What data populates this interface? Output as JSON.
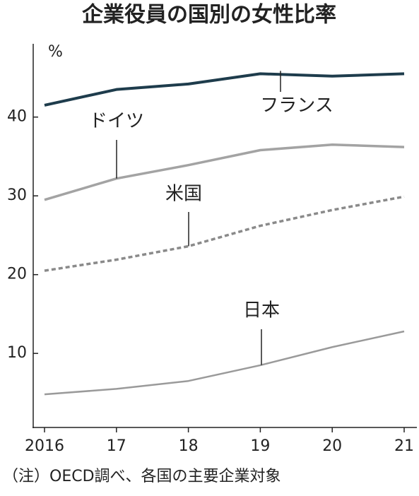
{
  "chart_data": {
    "type": "line",
    "title": "企業役員の国別の女性比率",
    "y_unit": "%",
    "note": "（注）OECD調べ、各国の主要企業対象",
    "categories": [
      "2016",
      "17",
      "18",
      "19",
      "20",
      "21"
    ],
    "series": [
      {
        "name": "フランス",
        "color": "#1e3c4c",
        "style": "solid",
        "values": [
          41.5,
          43.5,
          44.2,
          45.5,
          45.2,
          45.5
        ]
      },
      {
        "name": "ドイツ",
        "color": "#a3a3a3",
        "style": "solid",
        "values": [
          29.5,
          32.2,
          33.9,
          35.8,
          36.5,
          36.2
        ]
      },
      {
        "name": "米国",
        "color": "#8a8a8a",
        "style": "dashed",
        "values": [
          20.5,
          21.9,
          23.6,
          26.2,
          28.2,
          29.9
        ]
      },
      {
        "name": "日本",
        "color": "#9a9a9a",
        "style": "thin",
        "values": [
          4.8,
          5.5,
          6.5,
          8.5,
          10.8,
          12.8
        ]
      }
    ],
    "ylim": [
      0.6,
      49.3
    ],
    "yticks": [
      10,
      20,
      30,
      40
    ]
  }
}
